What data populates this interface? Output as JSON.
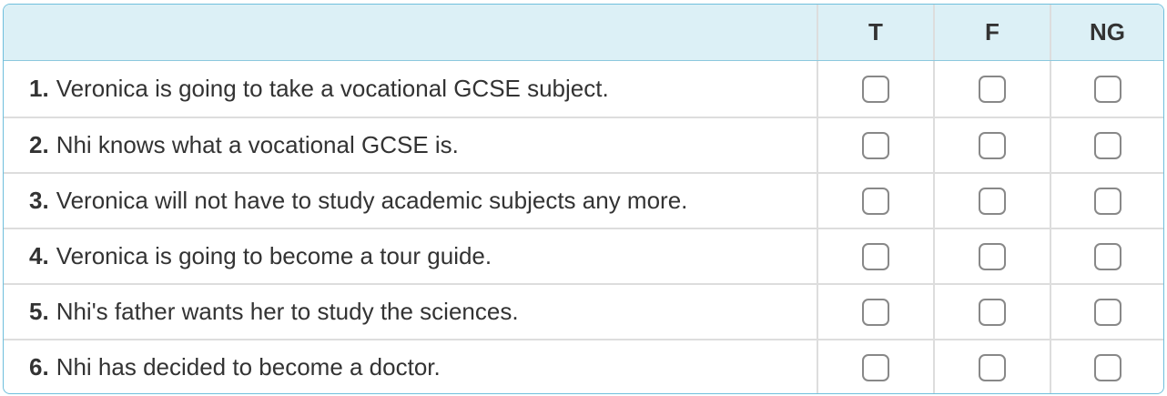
{
  "header": {
    "columns": [
      "T",
      "F",
      "NG"
    ]
  },
  "questions": [
    {
      "num": "1.",
      "text": "Veronica is going to take a vocational GCSE subject."
    },
    {
      "num": "2.",
      "text": "Nhi knows what a vocational GCSE is."
    },
    {
      "num": "3.",
      "text": "Veronica will not have to study academic subjects any more."
    },
    {
      "num": "4.",
      "text": "Veronica is going to become a tour guide."
    },
    {
      "num": "5.",
      "text": "Nhi's father wants her to study the sciences."
    },
    {
      "num": "6.",
      "text": "Nhi has decided to become a doctor."
    }
  ],
  "colors": {
    "header_bg": "#dcf0f6",
    "border": "#6fbfdc",
    "checkbox_border": "#888888"
  }
}
